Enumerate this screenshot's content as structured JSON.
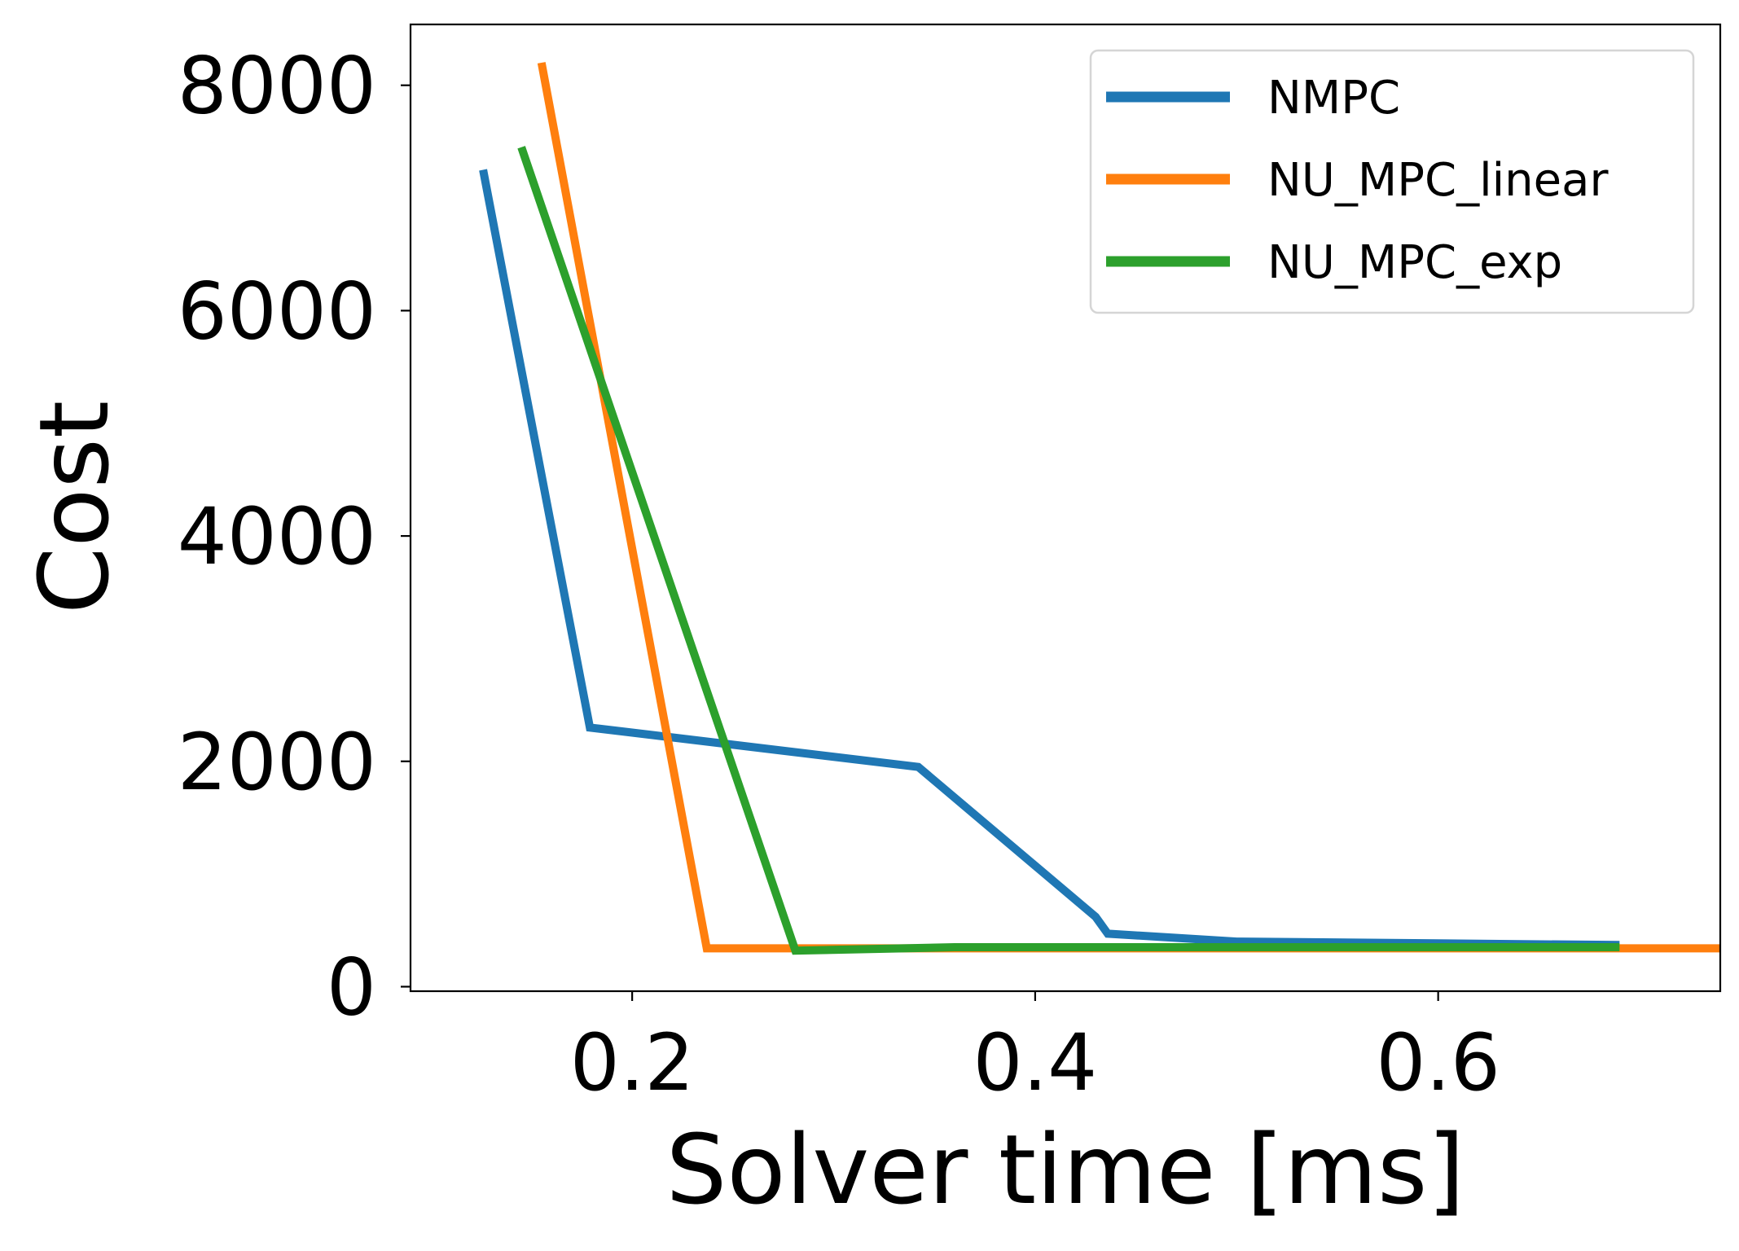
{
  "chart_data": {
    "type": "line",
    "xlabel": "Solver time [ms]",
    "ylabel": "Cost",
    "xlim": [
      0.09,
      0.74
    ],
    "ylim": [
      -40,
      8540
    ],
    "x_ticks": [
      0.2,
      0.4,
      0.6
    ],
    "x_tick_labels": [
      "0.2",
      "0.4",
      "0.6"
    ],
    "y_ticks": [
      0,
      2000,
      4000,
      6000,
      8000
    ],
    "y_tick_labels": [
      "0",
      "2000",
      "4000",
      "6000",
      "8000"
    ],
    "grid": false,
    "legend_position": "top-right",
    "series": [
      {
        "name": "NMPC",
        "color": "#1f77b4",
        "x": [
          0.126,
          0.179,
          0.342,
          0.43,
          0.436,
          0.5,
          0.69
        ],
        "y": [
          7250,
          2300,
          1950,
          620,
          470,
          400,
          370
        ]
      },
      {
        "name": "NU_MPC_linear",
        "color": "#ff7f0e",
        "x": [
          0.155,
          0.237,
          0.74
        ],
        "y": [
          8200,
          340,
          340
        ]
      },
      {
        "name": "NU_MPC_exp",
        "color": "#2ca02c",
        "x": [
          0.145,
          0.281,
          0.36,
          0.69
        ],
        "y": [
          7450,
          320,
          350,
          350
        ]
      }
    ]
  }
}
